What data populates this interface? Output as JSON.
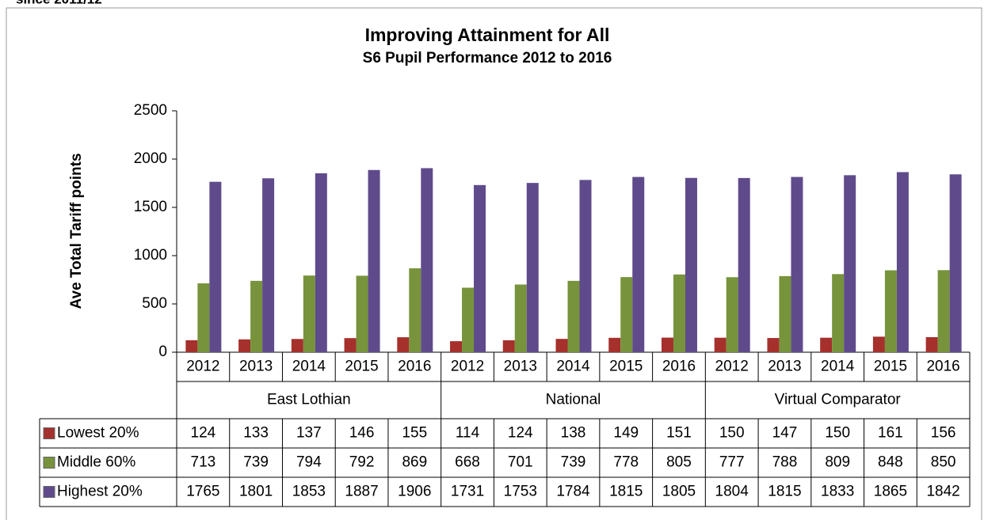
{
  "caption": "since 2011/12",
  "chart_data": {
    "type": "bar",
    "title": "Improving Attainment for All",
    "subtitle": "S6 Pupil Performance 2012 to 2016",
    "y_label": "Ave Total Tariff points",
    "categories": [
      "2012",
      "2013",
      "2014",
      "2015",
      "2016",
      "2012",
      "2013",
      "2014",
      "2015",
      "2016",
      "2012",
      "2013",
      "2014",
      "2015",
      "2016"
    ],
    "groups": [
      "East Lothian",
      "National",
      "Virtual Comparator"
    ],
    "series": [
      {
        "name": "Lowest 20%",
        "color": "#a5302c",
        "values": [
          124,
          133,
          137,
          146,
          155,
          114,
          124,
          138,
          149,
          151,
          150,
          147,
          150,
          161,
          156
        ]
      },
      {
        "name": "Middle 60%",
        "color": "#77933c",
        "values": [
          713,
          739,
          794,
          792,
          869,
          668,
          701,
          739,
          778,
          805,
          777,
          788,
          809,
          848,
          850
        ]
      },
      {
        "name": "Highest 20%",
        "color": "#5f4b8b",
        "values": [
          1765,
          1801,
          1853,
          1887,
          1906,
          1731,
          1753,
          1784,
          1815,
          1805,
          1804,
          1815,
          1833,
          1865,
          1842
        ]
      }
    ],
    "ylim": [
      0,
      2500
    ],
    "yticks": [
      0,
      500,
      1000,
      1500,
      2000,
      2500
    ],
    "grid": false
  }
}
